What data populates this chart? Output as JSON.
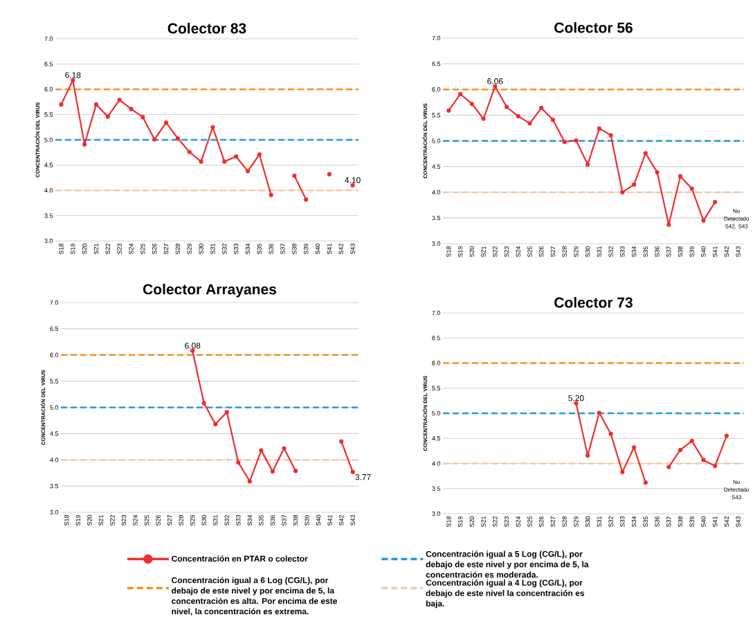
{
  "chart_data": [
    {
      "type": "line",
      "title": "Colector 83",
      "ylabel": "CONCENTRACIÓN DEL VIRUS",
      "categories": [
        "S18",
        "S19",
        "S20",
        "S21",
        "S22",
        "S23",
        "S24",
        "S25",
        "S26",
        "S27",
        "S28",
        "S29",
        "S30",
        "S31",
        "S32",
        "S33",
        "S34",
        "S35",
        "S36",
        "S37",
        "S38",
        "S39",
        "S40",
        "S41",
        "S42",
        "S43"
      ],
      "series": [
        {
          "color": "#ee2e2e",
          "values": [
            5.7,
            6.18,
            4.91,
            5.7,
            5.46,
            5.79,
            5.61,
            5.45,
            5.01,
            5.34,
            5.03,
            4.76,
            4.57,
            5.25,
            4.57,
            4.67,
            4.38,
            4.71,
            3.91,
            null,
            4.29,
            3.82,
            null,
            4.32,
            null,
            4.1
          ],
          "value_labels": [
            null,
            "6.18",
            null,
            null,
            null,
            null,
            null,
            null,
            null,
            null,
            null,
            null,
            null,
            null,
            null,
            null,
            null,
            null,
            null,
            null,
            null,
            null,
            null,
            null,
            null,
            "4.10"
          ]
        }
      ],
      "ylim": [
        3,
        7
      ],
      "yticks": [
        {
          "value": 3,
          "label": "3.0"
        },
        {
          "value": 3.5,
          "label": "3.5"
        },
        {
          "value": 4,
          "label": "4.0"
        },
        {
          "value": 4.5,
          "label": "4.5"
        },
        {
          "value": 5,
          "label": "5.0"
        },
        {
          "value": 5.5,
          "label": "5.5"
        },
        {
          "value": 6,
          "label": "6.0"
        },
        {
          "value": 6.5,
          "label": "6.5"
        },
        {
          "value": 7,
          "label": "7.0"
        }
      ],
      "ref_lines": [
        {
          "axis": "y",
          "value": 6,
          "color": "#f7911e",
          "line_style": "dashed"
        },
        {
          "axis": "y",
          "value": 5,
          "color": "#1f9bd7",
          "line_style": "dashed"
        },
        {
          "axis": "y",
          "value": 4,
          "color": "#f9c7a8",
          "line_style": "dashed"
        }
      ],
      "grid": "y",
      "marker": "circle",
      "line_style": "solid"
    },
    {
      "type": "line",
      "title": "Colector 56",
      "ylabel": "CONCENTRACIÓN DEL VIRUS",
      "categories": [
        "S18",
        "S19",
        "S20",
        "S21",
        "S22",
        "S23",
        "S24",
        "S25",
        "S26",
        "S27",
        "S28",
        "S29",
        "S30",
        "S31",
        "S32",
        "S33",
        "S34",
        "S35",
        "S36",
        "S37",
        "S38",
        "S39",
        "S40",
        "S41",
        "S42",
        "S43"
      ],
      "series": [
        {
          "color": "#ee2e2e",
          "values": [
            5.59,
            5.91,
            5.72,
            5.43,
            6.06,
            5.66,
            5.48,
            5.34,
            5.64,
            5.41,
            4.98,
            5.01,
            4.54,
            5.24,
            5.11,
            4.0,
            4.15,
            4.76,
            4.39,
            3.37,
            4.31,
            4.07,
            3.45,
            3.81,
            null,
            null
          ],
          "value_labels": [
            null,
            null,
            null,
            null,
            "6.06",
            null,
            null,
            null,
            null,
            null,
            null,
            null,
            null,
            null,
            null,
            null,
            null,
            null,
            null,
            null,
            null,
            null,
            null,
            null,
            null,
            null
          ]
        }
      ],
      "ylim": [
        3,
        7
      ],
      "yticks": [
        {
          "value": 3,
          "label": "3.0"
        },
        {
          "value": 3.5,
          "label": "3.5"
        },
        {
          "value": 4,
          "label": "4.0"
        },
        {
          "value": 4.5,
          "label": "4.5"
        },
        {
          "value": 5,
          "label": "5.0"
        },
        {
          "value": 5.5,
          "label": "5.5"
        },
        {
          "value": 6,
          "label": "6.0"
        },
        {
          "value": 6.5,
          "label": "6.5"
        },
        {
          "value": 7,
          "label": "7.0"
        }
      ],
      "ref_lines": [
        {
          "axis": "y",
          "value": 6,
          "color": "#f7911e",
          "line_style": "dashed"
        },
        {
          "axis": "y",
          "value": 5,
          "color": "#1f9bd7",
          "line_style": "dashed"
        },
        {
          "axis": "y",
          "value": 4,
          "color": "#f9c7a8",
          "line_style": "dashed"
        }
      ],
      "annotations": [
        "No Detectado S42, S43"
      ],
      "grid": "y",
      "marker": "circle",
      "line_style": "solid"
    },
    {
      "type": "line",
      "title": "Colector Arrayanes",
      "ylabel": "CONCENTRACIÓN DEL VIRUS",
      "categories": [
        "S18",
        "S19",
        "S20",
        "S21",
        "S22",
        "S23",
        "S24",
        "S25",
        "S26",
        "S27",
        "S28",
        "S29",
        "S30",
        "S31",
        "S32",
        "S33",
        "S34",
        "S35",
        "S36",
        "S37",
        "S38",
        "S39",
        "S40",
        "S41",
        "S42",
        "S43"
      ],
      "series": [
        {
          "color": "#ee2e2e",
          "values": [
            null,
            null,
            null,
            null,
            null,
            null,
            null,
            null,
            null,
            null,
            null,
            6.08,
            5.08,
            4.68,
            4.91,
            3.95,
            3.59,
            4.18,
            3.78,
            4.22,
            3.79,
            null,
            null,
            null,
            4.35,
            3.77
          ],
          "value_labels": [
            null,
            null,
            null,
            null,
            null,
            null,
            null,
            null,
            null,
            null,
            null,
            "6.08",
            null,
            null,
            null,
            null,
            null,
            null,
            null,
            null,
            null,
            null,
            null,
            null,
            null,
            "3.77"
          ]
        }
      ],
      "ylim": [
        3,
        7
      ],
      "yticks": [
        {
          "value": 3,
          "label": "3.0"
        },
        {
          "value": 3.5,
          "label": "3.5"
        },
        {
          "value": 4,
          "label": "4.0"
        },
        {
          "value": 4.5,
          "label": "4.5"
        },
        {
          "value": 5,
          "label": "5.0"
        },
        {
          "value": 5.5,
          "label": "5.5"
        },
        {
          "value": 6,
          "label": "6.0"
        },
        {
          "value": 6.5,
          "label": "6.5"
        },
        {
          "value": 7,
          "label": "7.0"
        }
      ],
      "ref_lines": [
        {
          "axis": "y",
          "value": 6,
          "color": "#f7911e",
          "line_style": "dashed"
        },
        {
          "axis": "y",
          "value": 5,
          "color": "#1f9bd7",
          "line_style": "dashed"
        },
        {
          "axis": "y",
          "value": 4,
          "color": "#f9c7a8",
          "line_style": "dashed"
        }
      ],
      "grid": "y",
      "marker": "circle",
      "line_style": "solid"
    },
    {
      "type": "line",
      "title": "Colector 73",
      "ylabel": "CONCENTRACIÓN DEL VIRUS",
      "categories": [
        "S18",
        "S19",
        "S20",
        "S21",
        "S22",
        "S23",
        "S24",
        "S25",
        "S26",
        "S27",
        "S28",
        "S29",
        "S30",
        "S31",
        "S32",
        "S33",
        "S34",
        "S35",
        "S36",
        "S37",
        "S38",
        "S39",
        "S40",
        "S41",
        "S42",
        "S43"
      ],
      "series": [
        {
          "name": "Concentración en PTAR o colector",
          "color": "#ee2e2e",
          "values": [
            null,
            null,
            null,
            null,
            null,
            null,
            null,
            null,
            null,
            null,
            null,
            5.2,
            4.16,
            5.01,
            4.59,
            3.83,
            4.32,
            3.62,
            null,
            3.93,
            4.27,
            4.45,
            4.07,
            3.95,
            4.55,
            null
          ],
          "value_labels": [
            null,
            null,
            null,
            null,
            null,
            null,
            null,
            null,
            null,
            null,
            null,
            "5.20",
            null,
            null,
            null,
            null,
            null,
            null,
            null,
            null,
            null,
            null,
            null,
            null,
            null,
            null
          ]
        }
      ],
      "ylim": [
        3,
        7
      ],
      "yticks": [
        {
          "value": 3,
          "label": "3.0"
        },
        {
          "value": 3.5,
          "label": "3.5"
        },
        {
          "value": 4,
          "label": "4.0"
        },
        {
          "value": 4.5,
          "label": "4.5"
        },
        {
          "value": 5,
          "label": "5.0"
        },
        {
          "value": 5.5,
          "label": "5.5"
        },
        {
          "value": 6,
          "label": "6.0"
        },
        {
          "value": 6.5,
          "label": "6.5"
        },
        {
          "value": 7,
          "label": "7.0"
        }
      ],
      "ref_lines": [
        {
          "axis": "y",
          "value": 6,
          "color": "#f7911e",
          "line_style": "dashed",
          "label": "Concentración igual a 6 Log (CG/L), por debajo de este nivel y por encima de 5, la concentración es alta. Por encima de este nivel, la concentración es extrema."
        },
        {
          "axis": "y",
          "value": 5,
          "color": "#1f9bd7",
          "line_style": "dashed",
          "label": "Concentración igual a 5 Log (CG/L), por debajo de este nivel y por encima de 5, la concentración es moderada."
        },
        {
          "axis": "y",
          "value": 4,
          "color": "#f9c7a8",
          "line_style": "dashed",
          "label": "Concentración igual a 4 Log (CG/L), por debajo de este nivel la concentración es baja."
        }
      ],
      "annotations": [
        "No Detectado S43"
      ],
      "grid": "y",
      "marker": "circle",
      "line_style": "solid",
      "legend": "bottom"
    }
  ]
}
